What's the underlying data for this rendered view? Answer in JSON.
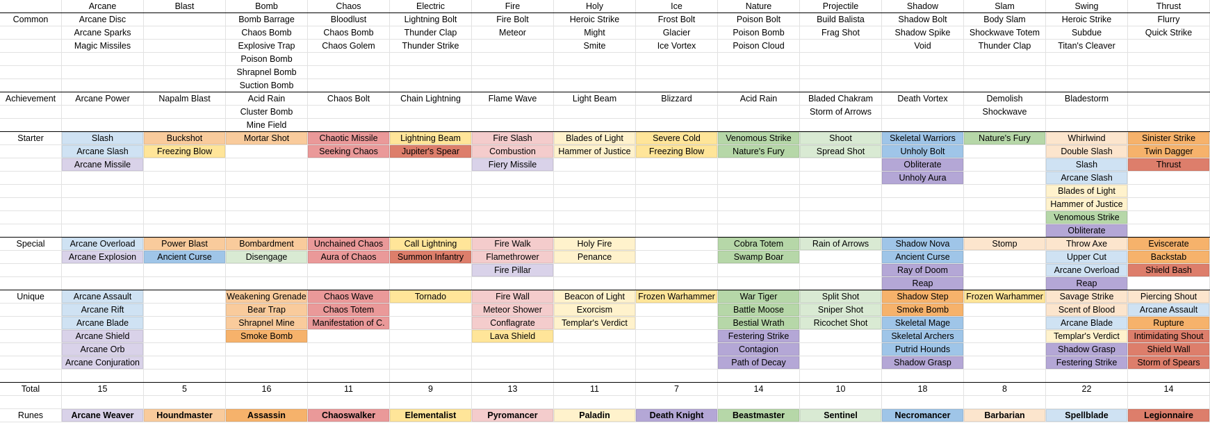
{
  "palette": {
    "b3": "#cfe2f3",
    "b2": "#9fc5e8",
    "o2": "#f9cb9c",
    "o1": "#f6b26b",
    "o3": "#fce5cd",
    "y2": "#ffe599",
    "y3": "#fff2cc",
    "r2": "#ea9999",
    "r3": "#f4cccc",
    "rb": "#dd7e6b",
    "p3": "#d9d2e9",
    "p2": "#b4a7d6",
    "g3": "#d9ead3",
    "g2": "#b6d7a8"
  },
  "headers": [
    "Arcane",
    "Blast",
    "Bomb",
    "Chaos",
    "Electric",
    "Fire",
    "Holy",
    "Ice",
    "Nature",
    "Projectile",
    "Shadow",
    "Slam",
    "Swing",
    "Thrust"
  ],
  "sections": [
    {
      "label": "Common",
      "rows": 6,
      "columns": [
        [
          [
            "Arcane Disc"
          ],
          [
            "Arcane Sparks"
          ],
          [
            "Magic Missiles"
          ]
        ],
        [],
        [
          [
            "Bomb Barrage"
          ],
          [
            "Chaos Bomb"
          ],
          [
            "Explosive Trap"
          ],
          [
            "Poison Bomb"
          ],
          [
            "Shrapnel Bomb"
          ],
          [
            "Suction Bomb"
          ]
        ],
        [
          [
            "Bloodlust"
          ],
          [
            "Chaos Bomb"
          ],
          [
            "Chaos Golem"
          ]
        ],
        [
          [
            "Lightning Bolt"
          ],
          [
            "Thunder Clap"
          ],
          [
            "Thunder Strike"
          ]
        ],
        [
          [
            "Fire Bolt"
          ],
          [
            "Meteor"
          ]
        ],
        [
          [
            "Heroic Strike"
          ],
          [
            "Might"
          ],
          [
            "Smite"
          ]
        ],
        [
          [
            "Frost Bolt"
          ],
          [
            "Glacier"
          ],
          [
            "Ice Vortex"
          ]
        ],
        [
          [
            "Poison Bolt"
          ],
          [
            "Poison Bomb"
          ],
          [
            "Poison Cloud"
          ]
        ],
        [
          [
            "Build Balista"
          ],
          [
            "Frag Shot"
          ]
        ],
        [
          [
            "Shadow Bolt"
          ],
          [
            "Shadow Spike"
          ],
          [
            "Void"
          ]
        ],
        [
          [
            "Body Slam"
          ],
          [
            "Shockwave Totem"
          ],
          [
            "Thunder Clap"
          ]
        ],
        [
          [
            "Heroic Strike"
          ],
          [
            "Subdue"
          ],
          [
            "Titan's Cleaver"
          ]
        ],
        [
          [
            "Flurry"
          ],
          [
            "Quick Strike"
          ]
        ]
      ]
    },
    {
      "label": "Achievement",
      "rows": 3,
      "columns": [
        [
          [
            "Arcane Power"
          ]
        ],
        [
          [
            "Napalm Blast"
          ]
        ],
        [
          [
            "Acid Rain"
          ],
          [
            "Cluster Bomb"
          ],
          [
            "Mine Field"
          ]
        ],
        [
          [
            "Chaos Bolt"
          ]
        ],
        [
          [
            "Chain Lightning"
          ]
        ],
        [
          [
            "Flame Wave"
          ]
        ],
        [
          [
            "Light Beam"
          ]
        ],
        [
          [
            "Blizzard"
          ]
        ],
        [
          [
            "Acid Rain"
          ]
        ],
        [
          [
            "Bladed Chakram"
          ],
          [
            "Storm of Arrows"
          ]
        ],
        [
          [
            "Death Vortex"
          ]
        ],
        [
          [
            "Demolish"
          ],
          [
            "Shockwave"
          ]
        ],
        [
          [
            "Bladestorm"
          ]
        ],
        []
      ]
    },
    {
      "label": "Starter",
      "rows": 8,
      "columns": [
        [
          [
            "Slash",
            "b3"
          ],
          [
            "Arcane Slash",
            "b3"
          ],
          [
            "Arcane Missile",
            "p3"
          ]
        ],
        [
          [
            "Buckshot",
            "o2"
          ],
          [
            "Freezing Blow",
            "y2"
          ]
        ],
        [
          [
            "Mortar Shot",
            "o2"
          ]
        ],
        [
          [
            "Chaotic Missile",
            "r2"
          ],
          [
            "Seeking Chaos",
            "r2"
          ]
        ],
        [
          [
            "Lightning Beam",
            "y2"
          ],
          [
            "Jupiter's Spear",
            "rb"
          ]
        ],
        [
          [
            "Fire Slash",
            "r3"
          ],
          [
            "Combustion",
            "r3"
          ],
          [
            "Fiery Missile",
            "p3"
          ]
        ],
        [
          [
            "Blades of Light",
            "y3"
          ],
          [
            "Hammer of Justice",
            "y3"
          ]
        ],
        [
          [
            "Severe Cold",
            "y2"
          ],
          [
            "Freezing Blow",
            "y2"
          ]
        ],
        [
          [
            "Venomous Strike",
            "g2"
          ],
          [
            "Nature's Fury",
            "g2"
          ]
        ],
        [
          [
            "Shoot",
            "g3"
          ],
          [
            "Spread Shot",
            "g3"
          ]
        ],
        [
          [
            "Skeletal Warriors",
            "b2"
          ],
          [
            "Unholy Bolt",
            "b2"
          ],
          [
            "Obliterate",
            "p2"
          ],
          [
            "Unholy Aura",
            "p2"
          ]
        ],
        [
          [
            "Nature's Fury",
            "g2"
          ]
        ],
        [
          [
            "Whirlwind",
            "o3"
          ],
          [
            "Double Slash",
            "o3"
          ],
          [
            "Slash",
            "b3"
          ],
          [
            "Arcane Slash",
            "b3"
          ],
          [
            "Blades of Light",
            "y3"
          ],
          [
            "Hammer of Justice",
            "y3"
          ],
          [
            "Venomous Strike",
            "g2"
          ],
          [
            "Obliterate",
            "p2"
          ]
        ],
        [
          [
            "Sinister Strike",
            "o1"
          ],
          [
            "Twin Dagger",
            "o1"
          ],
          [
            "Thrust",
            "rb"
          ]
        ]
      ]
    },
    {
      "label": "Special",
      "rows": 4,
      "columns": [
        [
          [
            "Arcane Overload",
            "b3"
          ],
          [
            "Arcane Explosion",
            "p3"
          ]
        ],
        [
          [
            "Power Blast",
            "o2"
          ],
          [
            "Ancient Curse",
            "b2"
          ]
        ],
        [
          [
            "Bombardment",
            "o2"
          ],
          [
            "Disengage",
            "g3"
          ]
        ],
        [
          [
            "Unchained Chaos",
            "r2"
          ],
          [
            "Aura of Chaos",
            "r2"
          ]
        ],
        [
          [
            "Call Lightning",
            "y2"
          ],
          [
            "Summon Infantry",
            "rb"
          ]
        ],
        [
          [
            "Fire Walk",
            "r3"
          ],
          [
            "Flamethrower",
            "r3"
          ],
          [
            "Fire Pillar",
            "p3"
          ]
        ],
        [
          [
            "Holy Fire",
            "y3"
          ],
          [
            "Penance",
            "y3"
          ]
        ],
        [],
        [
          [
            "Cobra Totem",
            "g2"
          ],
          [
            "Swamp Boar",
            "g2"
          ]
        ],
        [
          [
            "Rain of Arrows",
            "g3"
          ]
        ],
        [
          [
            "Shadow Nova",
            "b2"
          ],
          [
            "Ancient Curse",
            "b2"
          ],
          [
            "Ray of Doom",
            "p2"
          ],
          [
            "Reap",
            "p2"
          ]
        ],
        [
          [
            "Stomp",
            "o3"
          ]
        ],
        [
          [
            "Throw Axe",
            "o3"
          ],
          [
            "Upper Cut",
            "b3"
          ],
          [
            "Arcane Overload",
            "b3"
          ],
          [
            "Reap",
            "p2"
          ]
        ],
        [
          [
            "Eviscerate",
            "o1"
          ],
          [
            "Backstab",
            "o1"
          ],
          [
            "Shield Bash",
            "rb"
          ]
        ]
      ]
    },
    {
      "label": "Unique",
      "rows": 7,
      "columns": [
        [
          [
            "Arcane Assault",
            "b3"
          ],
          [
            "Arcane Rift",
            "b3"
          ],
          [
            "Arcane Blade",
            "b3"
          ],
          [
            "Arcane Shield",
            "p3"
          ],
          [
            "Arcane Orb",
            "p3"
          ],
          [
            "Arcane Conjuration",
            "p3"
          ]
        ],
        [],
        [
          [
            "Weakening Grenade",
            "o2"
          ],
          [
            "Bear Trap",
            "o2"
          ],
          [
            "Shrapnel Mine",
            "o2"
          ],
          [
            "Smoke Bomb",
            "o1"
          ]
        ],
        [
          [
            "Chaos Wave",
            "r2"
          ],
          [
            "Chaos Totem",
            "r2"
          ],
          [
            "Manifestation of C.",
            "r2"
          ]
        ],
        [
          [
            "Tornado",
            "y2"
          ]
        ],
        [
          [
            "Fire Wall",
            "r3"
          ],
          [
            "Meteor Shower",
            "r3"
          ],
          [
            "Conflagrate",
            "r3"
          ],
          [
            "Lava Shield",
            "y2"
          ]
        ],
        [
          [
            "Beacon of Light",
            "y3"
          ],
          [
            "Exorcism",
            "y3"
          ],
          [
            "Templar's Verdict",
            "y3"
          ]
        ],
        [
          [
            "Frozen Warhammer",
            "y2"
          ]
        ],
        [
          [
            "War Tiger",
            "g2"
          ],
          [
            "Battle Moose",
            "g2"
          ],
          [
            "Bestial Wrath",
            "g2"
          ],
          [
            "Festering Strike",
            "p2"
          ],
          [
            "Contagion",
            "p2"
          ],
          [
            "Path of Decay",
            "p2"
          ]
        ],
        [
          [
            "Split Shot",
            "g3"
          ],
          [
            "Sniper Shot",
            "g3"
          ],
          [
            "Ricochet Shot",
            "g3"
          ]
        ],
        [
          [
            "Shadow Step",
            "o1"
          ],
          [
            "Smoke Bomb",
            "o1"
          ],
          [
            "Skeletal Mage",
            "b2"
          ],
          [
            "Skeletal Archers",
            "b2"
          ],
          [
            "Putrid Hounds",
            "b2"
          ],
          [
            "Shadow Grasp",
            "p2"
          ]
        ],
        [
          [
            "Frozen Warhammer",
            "y2"
          ]
        ],
        [
          [
            "Savage Strike",
            "o3"
          ],
          [
            "Scent of Blood",
            "o3"
          ],
          [
            "Arcane Blade",
            "b3"
          ],
          [
            "Templar's Verdict",
            "y3"
          ],
          [
            "Shadow Grasp",
            "p2"
          ],
          [
            "Festering Strike",
            "p2"
          ]
        ],
        [
          [
            "Piercing Shout",
            "o3"
          ],
          [
            "Arcane Assault",
            "b3"
          ],
          [
            "Rupture",
            "o1"
          ],
          [
            "Intimidating Shout",
            "rb"
          ],
          [
            "Shield Wall",
            "rb"
          ],
          [
            "Storm of Spears",
            "rb"
          ]
        ]
      ]
    }
  ],
  "total": {
    "label": "Total",
    "values": [
      "15",
      "5",
      "16",
      "11",
      "9",
      "13",
      "11",
      "7",
      "14",
      "10",
      "18",
      "8",
      "22",
      "14"
    ]
  },
  "runes": {
    "label": "Runes",
    "values": [
      [
        "Arcane Weaver",
        "p3"
      ],
      [
        "Houndmaster",
        "o2"
      ],
      [
        "Assassin",
        "o1"
      ],
      [
        "Chaoswalker",
        "r2"
      ],
      [
        "Elementalist",
        "y2"
      ],
      [
        "Pyromancer",
        "r3"
      ],
      [
        "Paladin",
        "y3"
      ],
      [
        "Death Knight",
        "p2"
      ],
      [
        "Beastmaster",
        "g2"
      ],
      [
        "Sentinel",
        "g3"
      ],
      [
        "Necromancer",
        "b2"
      ],
      [
        "Barbarian",
        "o3"
      ],
      [
        "Spellblade",
        "b3"
      ],
      [
        "Legionnaire",
        "rb"
      ]
    ]
  }
}
